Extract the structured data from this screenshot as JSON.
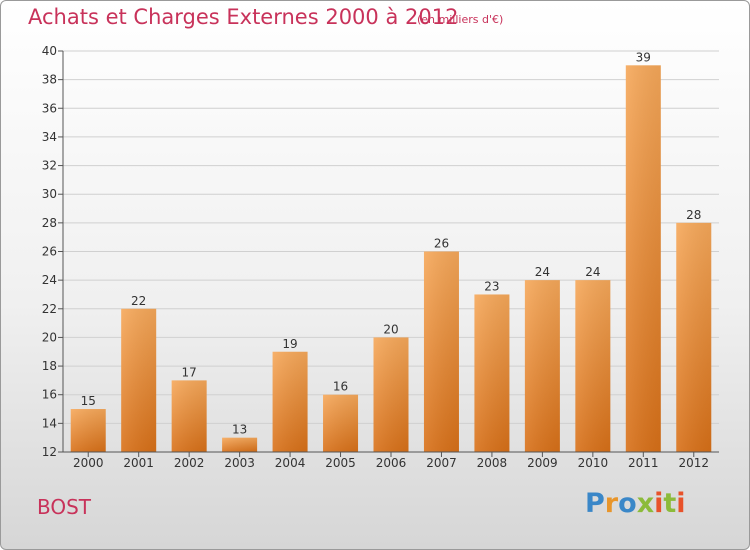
{
  "header": {
    "title": "Achats et Charges Externes 2000 à 2012",
    "unit": "(en milliers d'€)"
  },
  "footer": {
    "commune": "BOST",
    "logo": "Proxiti"
  },
  "colors": {
    "title": "#c8325a",
    "bar_light": "#f6a85a",
    "bar_dark": "#d87018",
    "grid": "#d0d0d0",
    "axis_text": "#333333"
  },
  "chart_data": {
    "type": "bar",
    "categories": [
      "2000",
      "2001",
      "2002",
      "2003",
      "2004",
      "2005",
      "2006",
      "2007",
      "2008",
      "2009",
      "2010",
      "2011",
      "2012"
    ],
    "values": [
      15,
      22,
      17,
      13,
      19,
      16,
      20,
      26,
      23,
      24,
      24,
      39,
      28
    ],
    "ylim": [
      12,
      40
    ],
    "yticks": [
      12,
      14,
      16,
      18,
      20,
      22,
      24,
      26,
      28,
      30,
      32,
      34,
      36,
      38,
      40
    ],
    "grid": true,
    "title": "Achats et Charges Externes 2000 à 2012",
    "xlabel": "",
    "ylabel": ""
  }
}
